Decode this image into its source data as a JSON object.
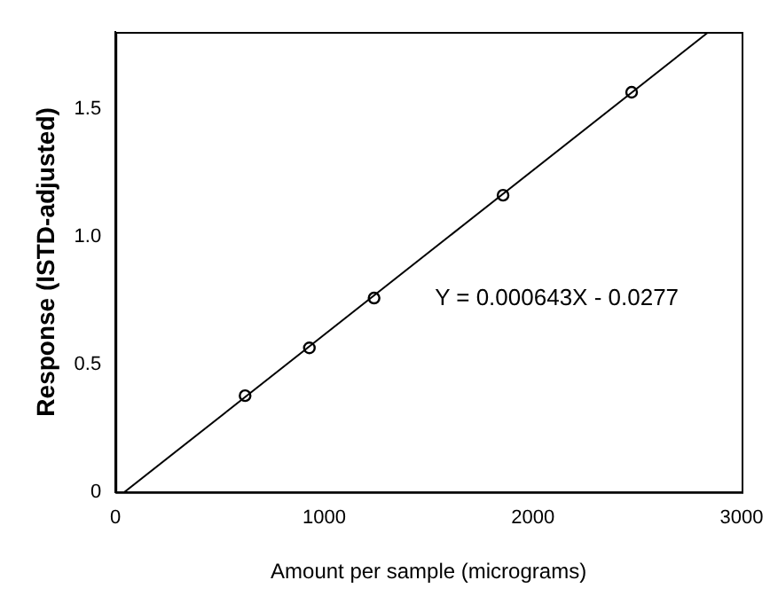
{
  "chart_data": {
    "type": "scatter",
    "xlabel": "Amount per sample (micrograms)",
    "ylabel": "Response (ISTD-adjusted)",
    "series": [
      {
        "marker": "circle",
        "color": "#000000",
        "x": [
          621,
          929,
          1239,
          1857,
          2473
        ],
        "values": [
          0.377,
          0.564,
          0.759,
          1.161,
          1.564
        ]
      },
      {
        "type": "line",
        "marker": "none",
        "color": "#000000",
        "x": [
          43,
          2842
        ],
        "values": [
          0,
          1.8
        ]
      }
    ],
    "xlim": [
      0,
      3000
    ],
    "xticks": [
      0,
      1000,
      2000,
      3000
    ],
    "ylim": [
      0,
      1.8
    ],
    "yticks": [
      0,
      0.5,
      {
        "value": 1,
        "label": "1.0"
      },
      1.5
    ],
    "annotations": [
      "Y = 0.000643X - 0.0277"
    ],
    "grid": false,
    "legend": false
  }
}
